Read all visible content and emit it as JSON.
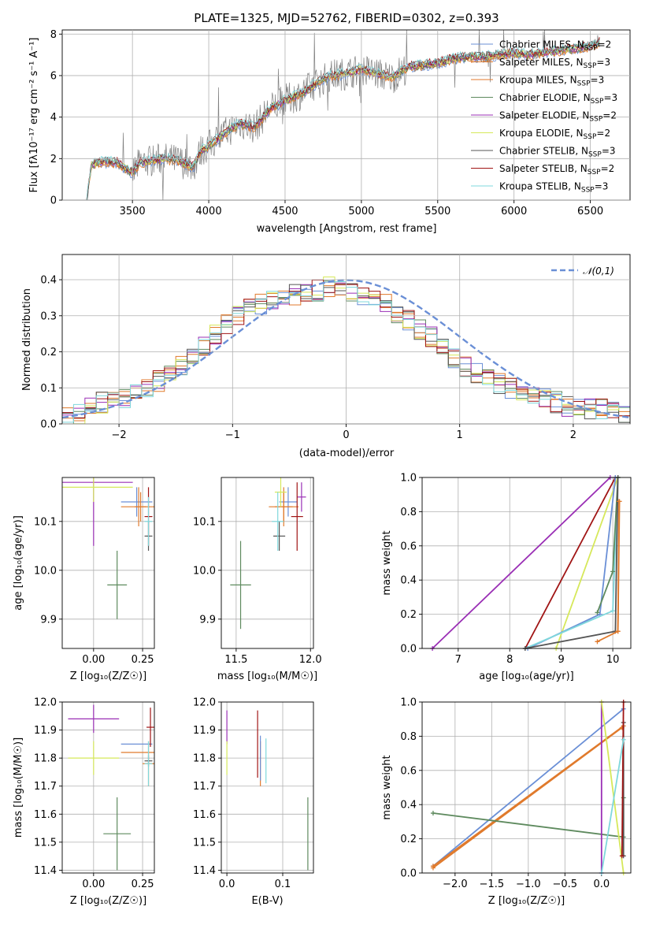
{
  "colors": {
    "chabrier_miles": "#6a8fd6",
    "salpeter_miles": "#e07a2c",
    "kroupa_miles": "#e07a2c",
    "chabrier_elodie": "#5e8a5e",
    "salpeter_elodie": "#9a2fb5",
    "kroupa_elodie": "#d6e85a",
    "chabrier_stelib": "#555555",
    "salpeter_stelib": "#a01414",
    "kroupa_stelib": "#7fd8dc",
    "data": "#808080",
    "normal": "#6a8fd6"
  },
  "chart_data": [
    {
      "id": "spectrum",
      "type": "line",
      "title": "PLATE=1325, MJD=52762, FIBERID=0302, z=0.393",
      "xlabel": "wavelength [Angstrom, rest frame]",
      "ylabel": "Flux [f$_\\lambda$10$^{-17}$ erg cm$^{-2}$ s$^{-1}$ A$^{-1}$]",
      "ylabel_text": "Flux [fλ10⁻¹⁷ erg cm⁻² s⁻¹ A⁻¹]",
      "xlim": [
        3040,
        6760
      ],
      "ylim": [
        0,
        8.2
      ],
      "xticks": [
        "3500",
        "4000",
        "4500",
        "5000",
        "5500",
        "6000",
        "6500"
      ],
      "yticks": [
        "0",
        "2",
        "4",
        "6",
        "8"
      ],
      "legend": [
        "Chabrier MILES, N_SSP=2",
        "Salpeter MILES, N_SSP=3",
        "Kroupa MILES, N_SSP=3",
        "Chabrier ELODIE, N_SSP=3",
        "Salpeter ELODIE, N_SSP=2",
        "Kroupa ELODIE, N_SSP=2",
        "Chabrier STELIB, N_SSP=3",
        "Salpeter STELIB, N_SSP=2",
        "Kroupa STELIB, N_SSP=3"
      ],
      "legend_labels": [
        "Chabrier MILES, N",
        "Salpeter MILES, N",
        "Kroupa MILES, N",
        "Chabrier ELODIE, N",
        "Salpeter ELODIE, N",
        "Kroupa ELODIE, N",
        "Chabrier STELIB, N",
        "Salpeter STELIB, N",
        "Kroupa STELIB, N"
      ],
      "legend_sub": "SSP",
      "legend_vals": [
        "=2",
        "=3",
        "=3",
        "=3",
        "=2",
        "=2",
        "=3",
        "=2",
        "=3"
      ],
      "legend_placement": "upper right",
      "continuum": [
        [
          3200,
          0
        ],
        [
          3230,
          1.7
        ],
        [
          3300,
          1.85
        ],
        [
          3400,
          1.8
        ],
        [
          3500,
          1.3
        ],
        [
          3550,
          1.8
        ],
        [
          3700,
          2.0
        ],
        [
          3800,
          1.9
        ],
        [
          3900,
          1.6
        ],
        [
          3950,
          2.4
        ],
        [
          4000,
          2.6
        ],
        [
          4100,
          3.2
        ],
        [
          4200,
          3.7
        ],
        [
          4300,
          3.5
        ],
        [
          4400,
          4.4
        ],
        [
          4500,
          4.8
        ],
        [
          4600,
          5.1
        ],
        [
          4700,
          5.6
        ],
        [
          4800,
          6.0
        ],
        [
          4900,
          6.1
        ],
        [
          5000,
          6.3
        ],
        [
          5100,
          6.1
        ],
        [
          5200,
          5.9
        ],
        [
          5300,
          6.4
        ],
        [
          5400,
          6.5
        ],
        [
          5500,
          6.6
        ],
        [
          5600,
          6.8
        ],
        [
          5700,
          6.9
        ],
        [
          5800,
          6.9
        ],
        [
          5900,
          7.0
        ],
        [
          6000,
          7.1
        ],
        [
          6100,
          7.0
        ],
        [
          6200,
          7.1
        ],
        [
          6300,
          7.2
        ],
        [
          6400,
          7.3
        ],
        [
          6500,
          7.4
        ],
        [
          6560,
          7.6
        ]
      ]
    },
    {
      "id": "residuals",
      "type": "line",
      "xlabel": "(data-model)/error",
      "ylabel": "Normed distribution",
      "xlim": [
        -2.5,
        2.5
      ],
      "ylim": [
        0,
        0.47
      ],
      "xticks": [
        "−2",
        "−1",
        "0",
        "1",
        "2"
      ],
      "yticks": [
        "0.0",
        "0.1",
        "0.2",
        "0.3",
        "0.4"
      ],
      "legend": "𝒩(0,1)",
      "hist_base": [
        0.02,
        0.03,
        0.05,
        0.06,
        0.06,
        0.07,
        0.08,
        0.1,
        0.12,
        0.14,
        0.16,
        0.19,
        0.22,
        0.25,
        0.28,
        0.3,
        0.32,
        0.33,
        0.34,
        0.35,
        0.36,
        0.37,
        0.37,
        0.38,
        0.37,
        0.37,
        0.36,
        0.35,
        0.33,
        0.31,
        0.29,
        0.26,
        0.24,
        0.21,
        0.18,
        0.16,
        0.14,
        0.12,
        0.11,
        0.1,
        0.09,
        0.08,
        0.07,
        0.06,
        0.05,
        0.05,
        0.04,
        0.04,
        0.03,
        0.03
      ]
    },
    {
      "id": "age_vs_Z",
      "type": "scatter",
      "xlabel": "Z [log₁₀(Z/Z☉)]",
      "ylabel": "age  [log₁₀(age/yr)]",
      "xlim": [
        -0.16,
        0.31
      ],
      "ylim": [
        9.84,
        10.19
      ],
      "xticks": [
        "0.00",
        "0.25"
      ],
      "yticks": [
        "9.9",
        "10.0",
        "10.1"
      ],
      "points": [
        {
          "key": "chabrier_miles",
          "x": 0.22,
          "y": 10.14,
          "xerr": 0.08,
          "yerr": 0.03
        },
        {
          "key": "salpeter_miles",
          "x": 0.23,
          "y": 10.13,
          "xerr": 0.09,
          "yerr": 0.04
        },
        {
          "key": "kroupa_miles",
          "x": 0.24,
          "y": 10.13,
          "xerr": 0.03,
          "yerr": 0.03
        },
        {
          "key": "chabrier_elodie",
          "x": 0.12,
          "y": 9.97,
          "xerr": 0.05,
          "yerr": 0.07
        },
        {
          "key": "salpeter_elodie",
          "x": 0.0,
          "y": 10.18,
          "xerr": 0.2,
          "yerr": 0.13
        },
        {
          "key": "kroupa_elodie",
          "x": 0.0,
          "y": 10.17,
          "xerr": 0.2,
          "yerr": 0.03
        },
        {
          "key": "chabrier_stelib",
          "x": 0.28,
          "y": 10.07,
          "xerr": 0.02,
          "yerr": 0.03
        },
        {
          "key": "salpeter_stelib",
          "x": 0.28,
          "y": 10.11,
          "xerr": 0.02,
          "yerr": 0.06
        },
        {
          "key": "kroupa_stelib",
          "x": 0.28,
          "y": 10.1,
          "xerr": 0.02,
          "yerr": 0.05
        }
      ]
    },
    {
      "id": "age_vs_mass",
      "type": "scatter",
      "xlabel": "mass [log₁₀(M/M☉)]",
      "ylabel": "",
      "xlim": [
        11.4,
        12.02
      ],
      "ylim": [
        9.84,
        10.19
      ],
      "xticks": [
        "11.5",
        "12.0"
      ],
      "yticks": [
        "9.9",
        "10.0",
        "10.1"
      ],
      "points": [
        {
          "key": "chabrier_miles",
          "x": 11.85,
          "y": 10.14,
          "xerr": 0.06,
          "yerr": 0.03
        },
        {
          "key": "salpeter_miles",
          "x": 11.82,
          "y": 10.13,
          "xerr": 0.1,
          "yerr": 0.04
        },
        {
          "key": "kroupa_miles",
          "x": 11.82,
          "y": 10.13,
          "xerr": 0.06,
          "yerr": 0.03
        },
        {
          "key": "chabrier_elodie",
          "x": 11.53,
          "y": 9.97,
          "xerr": 0.07,
          "yerr": 0.09
        },
        {
          "key": "salpeter_elodie",
          "x": 11.94,
          "y": 10.15,
          "xerr": 0.03,
          "yerr": 0.03
        },
        {
          "key": "kroupa_elodie",
          "x": 11.8,
          "y": 10.16,
          "xerr": 0.04,
          "yerr": 0.03
        },
        {
          "key": "chabrier_stelib",
          "x": 11.79,
          "y": 10.07,
          "xerr": 0.04,
          "yerr": 0.03
        },
        {
          "key": "salpeter_stelib",
          "x": 11.91,
          "y": 10.11,
          "xerr": 0.04,
          "yerr": 0.07
        },
        {
          "key": "kroupa_stelib",
          "x": 11.78,
          "y": 10.1,
          "xerr": 0.04,
          "yerr": 0.06
        }
      ]
    },
    {
      "id": "mass_weight_vs_age",
      "type": "line",
      "xlabel": "age  [log₁₀(age/yr)]",
      "ylabel": "mass weight",
      "xlim": [
        6.3,
        10.35
      ],
      "ylim": [
        0,
        1
      ],
      "xticks": [
        "7",
        "8",
        "9",
        "10"
      ],
      "yticks": [
        "0.0",
        "0.2",
        "0.4",
        "0.6",
        "0.8",
        "1.0"
      ],
      "series": [
        {
          "key": "salpeter_elodie",
          "x": [
            6.5,
            9.95
          ],
          "y": [
            0,
            1
          ]
        },
        {
          "key": "salpeter_stelib",
          "x": [
            8.3,
            10.05
          ],
          "y": [
            0,
            1
          ]
        },
        {
          "key": "kroupa_elodie",
          "x": [
            8.9,
            10.1
          ],
          "y": [
            0,
            1
          ]
        },
        {
          "key": "chabrier_miles",
          "x": [
            8.35,
            9.75,
            10.05
          ],
          "y": [
            0,
            0.2,
            1
          ]
        },
        {
          "key": "kroupa_stelib",
          "x": [
            8.3,
            10.0,
            10.1
          ],
          "y": [
            0,
            0.22,
            1
          ]
        },
        {
          "key": "chabrier_elodie",
          "x": [
            9.7,
            10.0,
            10.1
          ],
          "y": [
            0.21,
            0.45,
            1
          ]
        },
        {
          "key": "chabrier_stelib",
          "x": [
            8.3,
            10.05,
            10.1
          ],
          "y": [
            0,
            0.1,
            1
          ]
        },
        {
          "key": "salpeter_miles",
          "x": [
            9.7,
            10.1,
            10.13
          ],
          "y": [
            0.04,
            0.1,
            0.86
          ]
        },
        {
          "key": "kroupa_miles",
          "x": [
            10.1,
            10.12
          ],
          "y": [
            0.1,
            0.86
          ]
        }
      ]
    },
    {
      "id": "mass_vs_Z",
      "type": "scatter",
      "xlabel": "Z [log₁₀(Z/Z☉)]",
      "ylabel": "mass [log₁₀(M/M☉)]",
      "xlim": [
        -0.16,
        0.31
      ],
      "ylim": [
        11.39,
        12.0
      ],
      "xticks": [
        "0.00",
        "0.25"
      ],
      "yticks": [
        "11.4",
        "11.5",
        "11.6",
        "11.7",
        "11.8",
        "11.9",
        "12.0"
      ],
      "points": [
        {
          "key": "chabrier_miles",
          "x": 0.22,
          "y": 11.85,
          "xerr": 0.08,
          "yerr": 0.0
        },
        {
          "key": "salpeter_miles",
          "x": 0.23,
          "y": 11.82,
          "xerr": 0.09,
          "yerr": 0.0
        },
        {
          "key": "kroupa_miles",
          "x": 0.28,
          "y": 11.78,
          "xerr": 0.03,
          "yerr": 0.08
        },
        {
          "key": "chabrier_elodie",
          "x": 0.12,
          "y": 11.53,
          "xerr": 0.07,
          "yerr": 0.13
        },
        {
          "key": "salpeter_elodie",
          "x": 0.0,
          "y": 11.94,
          "xerr": 0.13,
          "yerr": 0.05
        },
        {
          "key": "kroupa_elodie",
          "x": 0.0,
          "y": 11.8,
          "xerr": 0.13,
          "yerr": 0.06
        },
        {
          "key": "chabrier_stelib",
          "x": 0.28,
          "y": 11.79,
          "xerr": 0.02,
          "yerr": 0.02
        },
        {
          "key": "salpeter_stelib",
          "x": 0.29,
          "y": 11.91,
          "xerr": 0.02,
          "yerr": 0.07
        },
        {
          "key": "kroupa_stelib",
          "x": 0.28,
          "y": 11.78,
          "xerr": 0.02,
          "yerr": 0.08
        }
      ]
    },
    {
      "id": "mass_vs_ebv",
      "type": "scatter",
      "xlabel": "E(B-V)",
      "ylabel": "",
      "xlim": [
        -0.01,
        0.155
      ],
      "ylim": [
        11.39,
        12.0
      ],
      "xticks": [
        "0.0",
        "0.1"
      ],
      "yticks": [
        "11.4",
        "11.5",
        "11.6",
        "11.7",
        "11.8",
        "11.9",
        "12.0"
      ],
      "points": [
        {
          "key": "salpeter_elodie",
          "x": 0.0,
          "y": 11.91,
          "xerr": 0,
          "yerr": 0.06
        },
        {
          "key": "kroupa_elodie",
          "x": 0.0,
          "y": 11.8,
          "xerr": 0,
          "yerr": 0.06
        },
        {
          "key": "salpeter_stelib",
          "x": 0.055,
          "y": 11.85,
          "xerr": 0,
          "yerr": 0.12
        },
        {
          "key": "salpeter_miles",
          "x": 0.06,
          "y": 11.78,
          "xerr": 0,
          "yerr": 0.08
        },
        {
          "key": "chabrier_miles",
          "x": 0.06,
          "y": 11.8,
          "xerr": 0,
          "yerr": 0.08
        },
        {
          "key": "kroupa_stelib",
          "x": 0.07,
          "y": 11.79,
          "xerr": 0,
          "yerr": 0.08
        },
        {
          "key": "chabrier_elodie",
          "x": 0.145,
          "y": 11.53,
          "xerr": 0,
          "yerr": 0.13
        }
      ]
    },
    {
      "id": "mass_weight_vs_Z",
      "type": "line",
      "xlabel": "Z [log₁₀(Z/Z☉)]",
      "ylabel": "mass weight",
      "xlim": [
        -2.45,
        0.4
      ],
      "ylim": [
        0,
        1
      ],
      "xticks": [
        "−2.0",
        "−1.5",
        "−1.0",
        "−0.5",
        "0.0"
      ],
      "yticks": [
        "0.0",
        "0.2",
        "0.4",
        "0.6",
        "0.8",
        "1.0"
      ],
      "series": [
        {
          "key": "chabrier_miles",
          "x": [
            -2.3,
            0.3
          ],
          "y": [
            0.04,
            0.96
          ]
        },
        {
          "key": "salpeter_miles",
          "x": [
            -2.3,
            0.3
          ],
          "y": [
            0.04,
            0.86
          ]
        },
        {
          "key": "kroupa_miles",
          "x": [
            -2.3,
            0.28
          ],
          "y": [
            0.03,
            0.85
          ]
        },
        {
          "key": "chabrier_elodie",
          "x": [
            -2.3,
            0.3,
            0.3
          ],
          "y": [
            0.35,
            0.21,
            0.44
          ]
        },
        {
          "key": "salpeter_elodie",
          "x": [
            0.0,
            0.0
          ],
          "y": [
            0,
            1
          ]
        },
        {
          "key": "kroupa_elodie",
          "x": [
            0.0,
            0.3
          ],
          "y": [
            1,
            0
          ]
        },
        {
          "key": "chabrier_stelib",
          "x": [
            0.3,
            0.3
          ],
          "y": [
            0.1,
            0.88
          ]
        },
        {
          "key": "salpeter_stelib",
          "x": [
            0.28,
            0.3
          ],
          "y": [
            0.1,
            1
          ]
        },
        {
          "key": "kroupa_stelib",
          "x": [
            0.0,
            0.3
          ],
          "y": [
            0,
            0.78
          ]
        }
      ]
    }
  ]
}
